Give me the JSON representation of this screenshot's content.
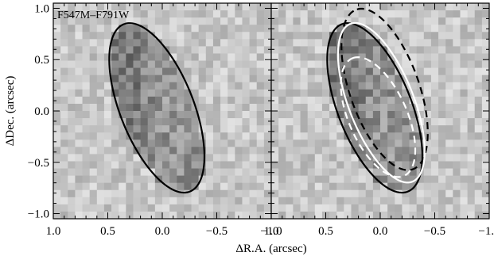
{
  "chart_data": {
    "type": "heatmap",
    "description_labels": {
      "panel_label": "F547M–F791W",
      "xlabel": "ΔR.A. (arcsec)",
      "ylabel": "ΔDec. (arcsec)"
    },
    "xlim": [
      1.0,
      -1.0
    ],
    "ylim": [
      -1.05,
      1.05
    ],
    "x_ticks": [
      1.0,
      0.5,
      0.0,
      -0.5,
      -1.0
    ],
    "x_tick_labels": [
      "1.0",
      "0.5",
      "0.0",
      "−0.5",
      "−1.0"
    ],
    "y_ticks": [
      1.0,
      0.5,
      0.0,
      -0.5,
      -1.0
    ],
    "y_tick_labels": [
      "1.0",
      "0.5",
      "0.0",
      "−0.5",
      "−1.0"
    ],
    "panels": [
      {
        "name": "left",
        "label": "F547M–F791W",
        "ellipses": [
          {
            "style": "solid",
            "color": "#000000",
            "center": [
              0.05,
              0.03
            ],
            "semi_major": 0.87,
            "semi_minor": 0.34,
            "pa_deg_from_north": 20
          }
        ]
      },
      {
        "name": "right",
        "label": "",
        "ellipses": [
          {
            "style": "solid",
            "color": "#000000",
            "center": [
              0.05,
              0.03
            ],
            "semi_major": 0.87,
            "semi_minor": 0.34,
            "pa_deg_from_north": 20
          },
          {
            "style": "dashed",
            "color": "#000000",
            "center": [
              -0.04,
              0.21
            ],
            "semi_major": 0.82,
            "semi_minor": 0.32,
            "pa_deg_from_north": 18
          },
          {
            "style": "solid",
            "color": "#ffffff",
            "center": [
              -0.01,
              0.08
            ],
            "semi_major": 0.82,
            "semi_minor": 0.3,
            "pa_deg_from_north": 20
          },
          {
            "style": "dashed",
            "color": "#ffffff",
            "center": [
              0.02,
              -0.06
            ],
            "semi_major": 0.62,
            "semi_minor": 0.27,
            "pa_deg_from_north": 22
          }
        ]
      }
    ],
    "colormap": "gray_reversed",
    "grid": false
  }
}
